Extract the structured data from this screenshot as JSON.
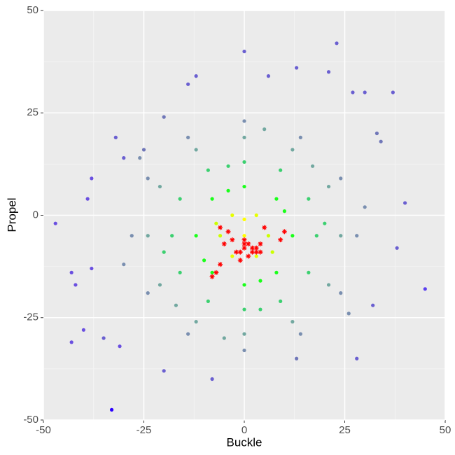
{
  "chart_data": {
    "type": "scatter",
    "xlabel": "Buckle",
    "ylabel": "Propel",
    "xlim": [
      -50,
      50
    ],
    "ylim": [
      -50,
      50
    ],
    "xticks": [
      -50,
      -25,
      0,
      25,
      50
    ],
    "yticks": [
      -50,
      -25,
      0,
      25,
      50
    ],
    "minor_xticks": [
      -37.5,
      -12.5,
      12.5,
      37.5
    ],
    "minor_yticks": [
      -37.5,
      -12.5,
      12.5,
      37.5
    ],
    "grid": true,
    "points": {
      "x": [
        -47,
        -43,
        -42,
        -43,
        -40,
        -38,
        -38,
        -39,
        -33,
        -32,
        -30,
        -31,
        -20,
        -8,
        -12,
        -14,
        0,
        13,
        23,
        21,
        6,
        27,
        30,
        37,
        40,
        38,
        45,
        32,
        28,
        13,
        -35,
        -20,
        -25,
        33,
        34,
        28,
        24,
        14,
        0,
        -14,
        -24,
        -28,
        -24,
        -14,
        0,
        14,
        24,
        30,
        -30,
        26,
        -26,
        24,
        21,
        12,
        0,
        -12,
        -21,
        -24,
        -21,
        -12,
        0,
        12,
        21,
        5,
        -5,
        17,
        -17,
        18,
        16,
        9,
        0,
        -9,
        -16,
        -18,
        -16,
        -9,
        0,
        9,
        16,
        20,
        -20,
        4,
        -4,
        12,
        8,
        0,
        -8,
        -12,
        -8,
        0,
        8,
        10,
        -10,
        4,
        -4,
        6,
        3,
        -3,
        -6,
        -3,
        3,
        0,
        0,
        7,
        -7
      ],
      "y": [
        -2,
        -14,
        -17,
        -31,
        -28,
        -13,
        9,
        4,
        -47.5,
        19,
        14,
        -32,
        -38,
        -40,
        34,
        32,
        40,
        36,
        42,
        35,
        34,
        30,
        30,
        30,
        3,
        -8,
        -18,
        -22,
        -35,
        -35,
        -30,
        24,
        16,
        20,
        18,
        -5,
        9,
        19,
        23,
        19,
        9,
        -5,
        -19,
        -29,
        -33,
        -29,
        -19,
        2,
        -12,
        -24,
        14,
        -5,
        7,
        16,
        19,
        16,
        7,
        -5,
        -17,
        -26,
        -29,
        -26,
        -17,
        21,
        -30,
        12,
        -22,
        -5,
        4,
        11,
        13,
        11,
        4,
        -5,
        -14,
        -21,
        -23,
        -21,
        -14,
        -2,
        -9,
        -23,
        12,
        -5,
        4,
        7,
        4,
        -5,
        -14,
        -17,
        -14,
        1,
        -11,
        -16,
        6,
        -5,
        0,
        0,
        -5,
        -10,
        -10,
        -5,
        -1,
        -9,
        -2
      ],
      "colors": [
        "#6a4fe0",
        "#6a4fe0",
        "#6a4fe0",
        "#6a4fe0",
        "#6a4fe0",
        "#6a4fe0",
        "#6a4fe0",
        "#6a4fe0",
        "#2b00ff",
        "#6a5fd0",
        "#6a5fd0",
        "#6a4fe0",
        "#6a5fd0",
        "#6a5fd0",
        "#6a5fd0",
        "#6a5fd0",
        "#6a5fd0",
        "#6a5fd0",
        "#6a5fd0",
        "#6a5fd0",
        "#6a5fd0",
        "#6a5fd0",
        "#6a5fd0",
        "#6a5fd0",
        "#6a5fd0",
        "#6a5fd0",
        "#5a3ff0",
        "#6a5fd0",
        "#6a5fd0",
        "#7077b8",
        "#6a5fd0",
        "#7077b8",
        "#7077b8",
        "#7077b8",
        "#7077b8",
        "#7a8fb0",
        "#7a8fb0",
        "#7a8fb0",
        "#7a8fb0",
        "#7a8fb0",
        "#7a8fb0",
        "#7a8fb0",
        "#7a8fb0",
        "#7a8fb0",
        "#7a8fb0",
        "#7a8fb0",
        "#7a8fb0",
        "#7a8fb0",
        "#7a8fb0",
        "#7a8fb0",
        "#7a8fb0",
        "#72a8a0",
        "#72a8a0",
        "#72a8a0",
        "#72a8a0",
        "#72a8a0",
        "#72a8a0",
        "#72a8a0",
        "#72a8a0",
        "#72a8a0",
        "#72a8a0",
        "#72a8a0",
        "#72a8a0",
        "#72a8a0",
        "#72a8a0",
        "#72a8a0",
        "#72a8a0",
        "#3cd070",
        "#3cd070",
        "#3cd070",
        "#3cd070",
        "#3cd070",
        "#3cd070",
        "#3cd070",
        "#3cd070",
        "#3cd070",
        "#3cd070",
        "#3cd070",
        "#3cd070",
        "#3cd070",
        "#3cd070",
        "#3cd070",
        "#3cd070",
        "#1aff1a",
        "#1aff1a",
        "#1aff1a",
        "#1aff1a",
        "#1aff1a",
        "#1aff1a",
        "#1aff1a",
        "#1aff1a",
        "#1aff1a",
        "#1aff1a",
        "#1aff1a",
        "#1aff1a",
        "#ccff00",
        "#e6ff00",
        "#e6ff00",
        "#ccff00",
        "#e6ff00",
        "#e6ff00",
        "#ffff00",
        "#ffff00",
        "#ccff00",
        "#ccff00"
      ]
    },
    "highlight": {
      "color": "#ff0000",
      "x": [
        -6,
        -4,
        -3,
        -5,
        -2,
        -6,
        -7,
        -8,
        0,
        1,
        0,
        -1,
        2,
        3,
        4,
        3,
        4,
        1,
        -1,
        5,
        9,
        10,
        0,
        2
      ],
      "y": [
        -3,
        -4,
        -6,
        -7,
        -9,
        -12,
        -14,
        -15,
        -6,
        -7,
        -8,
        -9,
        -8,
        -8,
        -7,
        -9,
        -9,
        -10,
        -11,
        -3,
        -6,
        -4,
        -7,
        -9
      ]
    }
  }
}
